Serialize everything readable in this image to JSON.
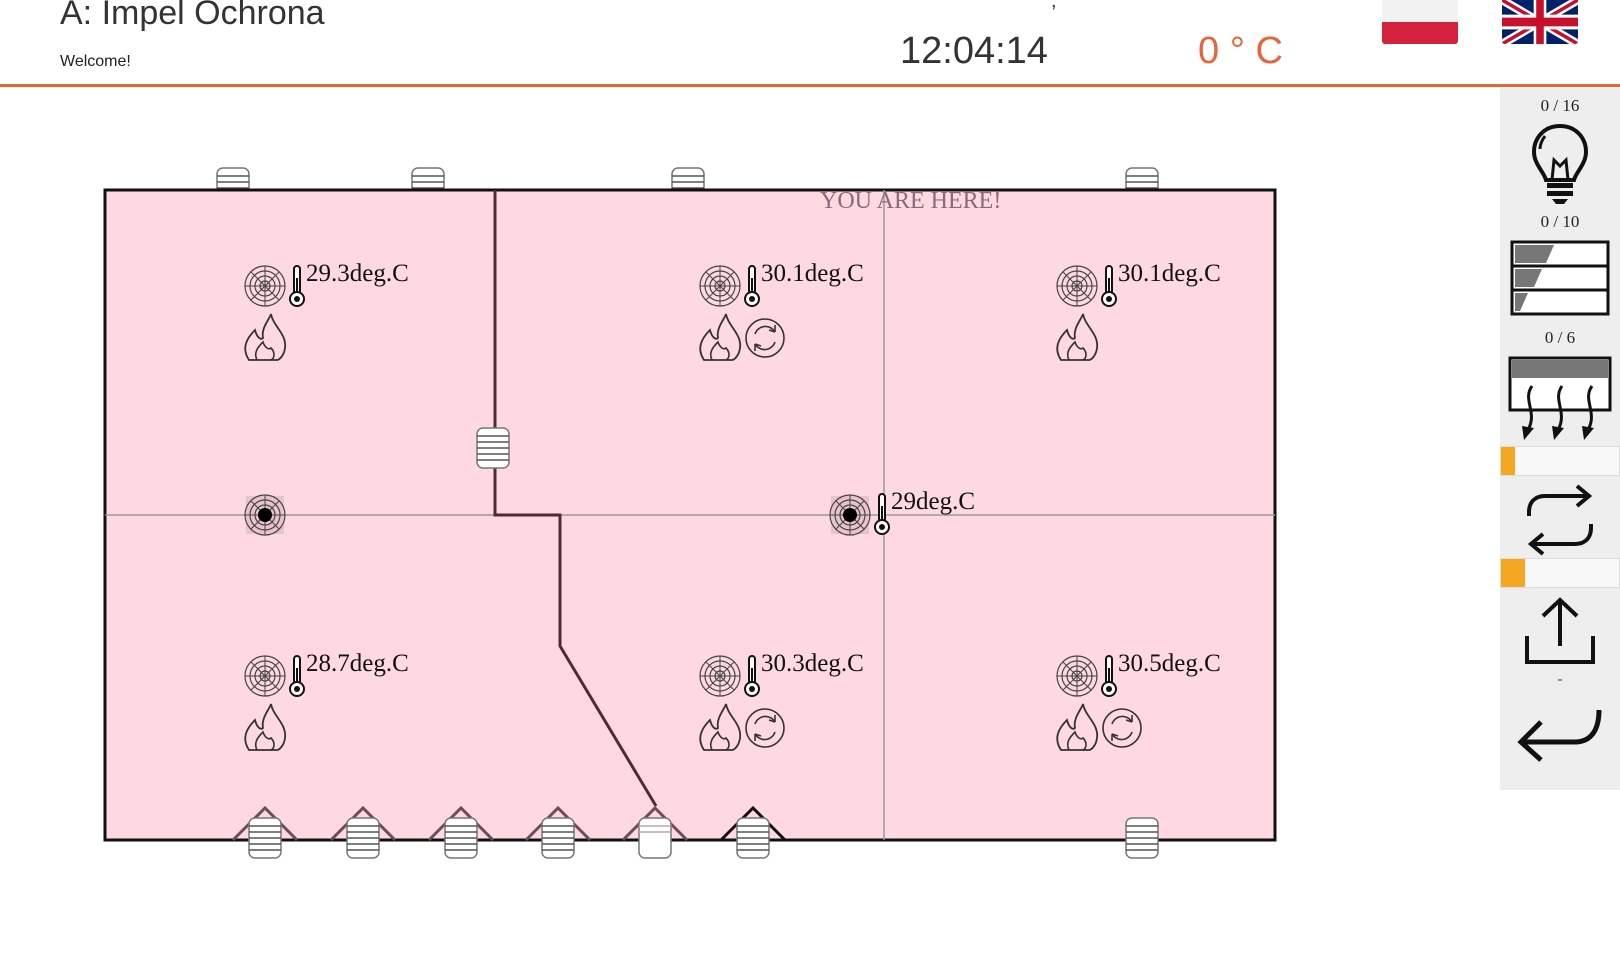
{
  "header": {
    "title": "A: Impel Ochrona",
    "welcome": "Welcome!",
    "clock": "12:04:14",
    "outside_temp": "0 ° C",
    "dot": ","
  },
  "languages": [
    {
      "name": "polish-flag"
    },
    {
      "name": "uk-flag"
    }
  ],
  "floorplan": {
    "you_are_here": "YOU ARE HERE!",
    "rooms": [
      {
        "id": "room-top-left",
        "temperature": "29.3deg.C"
      },
      {
        "id": "room-top-center",
        "temperature": "30.1deg.C"
      },
      {
        "id": "room-top-right",
        "temperature": "30.1deg.C"
      },
      {
        "id": "room-center",
        "temperature": "29deg.C"
      },
      {
        "id": "room-bottom-left",
        "temperature": "28.7deg.C"
      },
      {
        "id": "room-bottom-center",
        "temperature": "30.3deg.C"
      },
      {
        "id": "room-bottom-right",
        "temperature": "30.5deg.C"
      }
    ]
  },
  "side_panel": {
    "lights_count": "0 / 16",
    "blinds_count": "0 / 10",
    "vents_count": "0 / 6",
    "slider1_level": 0.12,
    "slider2_level": 0.2,
    "dash": "-"
  },
  "colors": {
    "accent": "#e8643a",
    "room_fill": "#fed9e1",
    "slider": "#f5a623"
  }
}
